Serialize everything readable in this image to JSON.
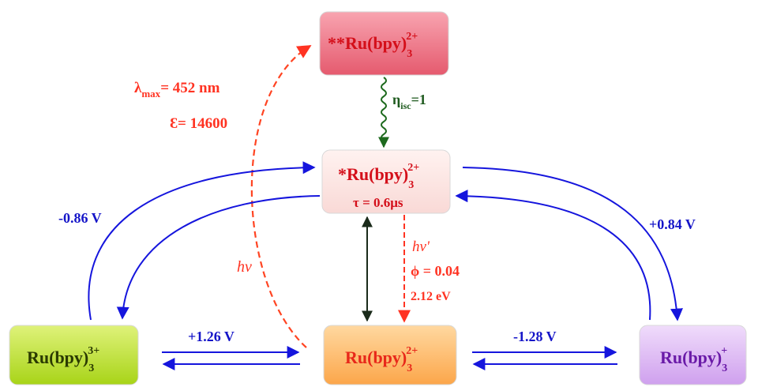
{
  "states": {
    "singlet": {
      "prefix": "**",
      "base": "Ru(bpy)",
      "sub": "3",
      "sup": "2+"
    },
    "triplet": {
      "prefix": "*",
      "base": "Ru(bpy)",
      "sub": "3",
      "sup": "2+",
      "lifetime": "τ = 0.6μs"
    },
    "ground": {
      "prefix": "",
      "base": "Ru(bpy)",
      "sub": "3",
      "sup": "2+"
    },
    "oxidized": {
      "prefix": "",
      "base": "Ru(bpy)",
      "sub": "3",
      "sup": "3+"
    },
    "reduced": {
      "prefix": "",
      "base": "Ru(bpy)",
      "sub": "3",
      "sup": "+"
    }
  },
  "labels": {
    "lambda_symbol": "λ",
    "lambda_sub": "max",
    "lambda_value": "= 452 nm",
    "epsilon": "Ɛ= 14600",
    "eta_symbol": "η",
    "eta_sub": "isc",
    "eta_value": "=1",
    "hv_absorb": "hν",
    "hv_emit": "hν'",
    "phi": "ϕ = 0.04",
    "energy": "2.12 eV",
    "pot_left_top": "-0.86 V",
    "pot_right_top": "+0.84 V",
    "pot_left_bottom": "+1.26 V",
    "pot_right_bottom": "-1.28 V"
  },
  "colors": {
    "singlet_fill": "#ef6e80",
    "triplet_fill": "#fde6e4",
    "ground_fill": "#fdb155",
    "oxidized_fill": "#b6dc28",
    "reduced_fill": "#dcb3f2",
    "red_text": "#ee1111",
    "orange_red": "#ff4422",
    "green": "#1e6a1e",
    "blue": "#1515dd",
    "purple": "#6a1aa8",
    "dark_green_text": "#2a4a00"
  }
}
